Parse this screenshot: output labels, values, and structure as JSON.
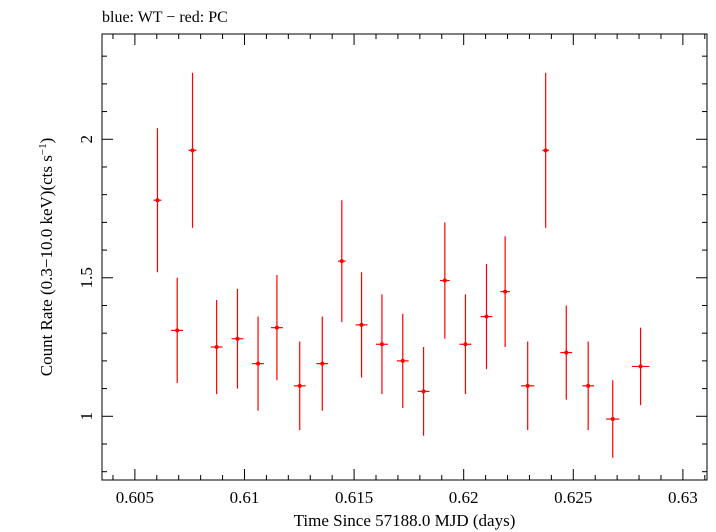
{
  "chart_data": {
    "type": "scatter",
    "title": "blue: WT − red: PC",
    "xlabel": "Time Since 57188.0 MJD (days)",
    "ylabel": "Count Rate (0.3−10.0 keV)(cts s⁻¹)",
    "xlim": [
      0.6035,
      0.6311
    ],
    "ylim": [
      0.77,
      2.38
    ],
    "xticks": [
      0.605,
      0.61,
      0.615,
      0.62,
      0.625,
      0.63
    ],
    "xtick_labels": [
      "0.605",
      "0.61",
      "0.615",
      "0.62",
      "0.625",
      "0.63"
    ],
    "yticks": [
      1,
      1.5,
      2
    ],
    "ytick_labels": [
      "1",
      "1.5",
      "2"
    ],
    "grid": false,
    "colors": {
      "series": "#ff0000",
      "axes": "#000000"
    },
    "series": [
      {
        "color": "#ff0000",
        "points": [
          {
            "x": 0.60603,
            "y": 1.78,
            "xerr": 0.00018,
            "yerr": 0.26
          },
          {
            "x": 0.60693,
            "y": 1.31,
            "xerr": 0.00027,
            "yerr": 0.19
          },
          {
            "x": 0.60763,
            "y": 1.96,
            "xerr": 0.00018,
            "yerr": 0.28
          },
          {
            "x": 0.60873,
            "y": 1.25,
            "xerr": 0.00027,
            "yerr": 0.17
          },
          {
            "x": 0.60968,
            "y": 1.28,
            "xerr": 0.00027,
            "yerr": 0.18
          },
          {
            "x": 0.61062,
            "y": 1.19,
            "xerr": 0.00027,
            "yerr": 0.17
          },
          {
            "x": 0.61148,
            "y": 1.32,
            "xerr": 0.00027,
            "yerr": 0.19
          },
          {
            "x": 0.61252,
            "y": 1.11,
            "xerr": 0.00027,
            "yerr": 0.16
          },
          {
            "x": 0.61355,
            "y": 1.19,
            "xerr": 0.00027,
            "yerr": 0.17
          },
          {
            "x": 0.61444,
            "y": 1.56,
            "xerr": 0.00018,
            "yerr": 0.22
          },
          {
            "x": 0.61534,
            "y": 1.33,
            "xerr": 0.00027,
            "yerr": 0.19
          },
          {
            "x": 0.61627,
            "y": 1.26,
            "xerr": 0.00027,
            "yerr": 0.18
          },
          {
            "x": 0.61722,
            "y": 1.2,
            "xerr": 0.00027,
            "yerr": 0.17
          },
          {
            "x": 0.61817,
            "y": 1.09,
            "xerr": 0.00027,
            "yerr": 0.16
          },
          {
            "x": 0.61914,
            "y": 1.49,
            "xerr": 0.00022,
            "yerr": 0.21
          },
          {
            "x": 0.62008,
            "y": 1.26,
            "xerr": 0.00027,
            "yerr": 0.18
          },
          {
            "x": 0.62104,
            "y": 1.36,
            "xerr": 0.00027,
            "yerr": 0.19
          },
          {
            "x": 0.62189,
            "y": 1.45,
            "xerr": 0.00022,
            "yerr": 0.2
          },
          {
            "x": 0.62292,
            "y": 1.11,
            "xerr": 0.0003,
            "yerr": 0.16
          },
          {
            "x": 0.62374,
            "y": 1.96,
            "xerr": 0.00015,
            "yerr": 0.28
          },
          {
            "x": 0.62468,
            "y": 1.23,
            "xerr": 0.00027,
            "yerr": 0.17
          },
          {
            "x": 0.62568,
            "y": 1.11,
            "xerr": 0.00027,
            "yerr": 0.16
          },
          {
            "x": 0.6268,
            "y": 0.99,
            "xerr": 0.0003,
            "yerr": 0.14
          },
          {
            "x": 0.62807,
            "y": 1.18,
            "xerr": 0.0004,
            "yerr": 0.14
          }
        ]
      }
    ]
  }
}
